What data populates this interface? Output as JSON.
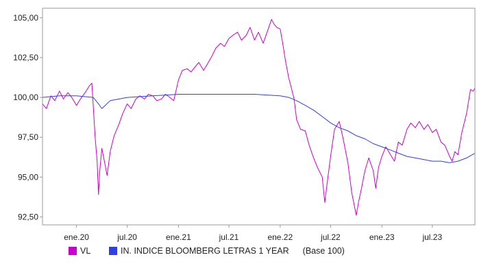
{
  "colors": {
    "series_vl": "#cc00cc",
    "series_index": "#2f3fe0",
    "plot_border": "#9a9a9a",
    "grid": "#e6e6e6"
  },
  "chart_data": {
    "type": "line",
    "title": "",
    "xlabel": "",
    "ylabel": "",
    "x_start": "2019-09",
    "x_end": "2023-12",
    "ylim": [
      92.0,
      105.6
    ],
    "y_ticks": [
      "105,00",
      "102,50",
      "100,00",
      "97,50",
      "95,00",
      "92,50"
    ],
    "y_tick_values": [
      105,
      102.5,
      100,
      97.5,
      95,
      92.5
    ],
    "x_ticks": [
      {
        "label": "ene.20",
        "date": "2020-01"
      },
      {
        "label": "jul.20",
        "date": "2020-07"
      },
      {
        "label": "ene.21",
        "date": "2021-01"
      },
      {
        "label": "jul.21",
        "date": "2021-07"
      },
      {
        "label": "ene.22",
        "date": "2022-01"
      },
      {
        "label": "jul.22",
        "date": "2022-07"
      },
      {
        "label": "ene.23",
        "date": "2023-01"
      },
      {
        "label": "jul.23",
        "date": "2023-07"
      }
    ],
    "grid": false,
    "legend_position": "bottom",
    "series": [
      {
        "name": "VL",
        "color": "#cc00cc",
        "points": [
          [
            "2019-09-01",
            99.6
          ],
          [
            "2019-09-15",
            99.3
          ],
          [
            "2019-10-01",
            100.1
          ],
          [
            "2019-10-15",
            99.8
          ],
          [
            "2019-11-01",
            100.4
          ],
          [
            "2019-11-15",
            99.9
          ],
          [
            "2019-12-01",
            100.3
          ],
          [
            "2019-12-15",
            100.0
          ],
          [
            "2020-01-01",
            99.5
          ],
          [
            "2020-01-15",
            99.9
          ],
          [
            "2020-02-01",
            100.3
          ],
          [
            "2020-02-15",
            100.7
          ],
          [
            "2020-02-25",
            100.9
          ],
          [
            "2020-03-01",
            99.5
          ],
          [
            "2020-03-08",
            97.5
          ],
          [
            "2020-03-15",
            96.0
          ],
          [
            "2020-03-20",
            93.9
          ],
          [
            "2020-03-25",
            95.5
          ],
          [
            "2020-04-01",
            96.8
          ],
          [
            "2020-04-10",
            96.0
          ],
          [
            "2020-04-20",
            95.1
          ],
          [
            "2020-05-01",
            96.6
          ],
          [
            "2020-05-15",
            97.6
          ],
          [
            "2020-06-01",
            98.3
          ],
          [
            "2020-06-15",
            99.0
          ],
          [
            "2020-07-01",
            99.6
          ],
          [
            "2020-07-15",
            99.3
          ],
          [
            "2020-08-01",
            99.9
          ],
          [
            "2020-08-15",
            100.1
          ],
          [
            "2020-09-01",
            99.9
          ],
          [
            "2020-09-15",
            100.2
          ],
          [
            "2020-10-01",
            100.1
          ],
          [
            "2020-10-15",
            99.8
          ],
          [
            "2020-11-01",
            99.9
          ],
          [
            "2020-11-15",
            100.2
          ],
          [
            "2020-12-01",
            100.0
          ],
          [
            "2020-12-15",
            99.8
          ],
          [
            "2021-01-01",
            101.1
          ],
          [
            "2021-01-15",
            101.7
          ],
          [
            "2021-02-01",
            101.8
          ],
          [
            "2021-02-15",
            101.6
          ],
          [
            "2021-03-01",
            101.9
          ],
          [
            "2021-03-15",
            102.2
          ],
          [
            "2021-04-01",
            101.7
          ],
          [
            "2021-04-15",
            102.1
          ],
          [
            "2021-05-01",
            102.6
          ],
          [
            "2021-05-15",
            103.1
          ],
          [
            "2021-06-01",
            103.4
          ],
          [
            "2021-06-15",
            103.2
          ],
          [
            "2021-07-01",
            103.7
          ],
          [
            "2021-07-15",
            103.9
          ],
          [
            "2021-08-01",
            104.1
          ],
          [
            "2021-08-15",
            103.6
          ],
          [
            "2021-09-01",
            103.9
          ],
          [
            "2021-09-15",
            104.4
          ],
          [
            "2021-10-01",
            103.6
          ],
          [
            "2021-10-15",
            104.1
          ],
          [
            "2021-11-01",
            103.4
          ],
          [
            "2021-11-15",
            104.1
          ],
          [
            "2021-12-01",
            104.9
          ],
          [
            "2021-12-10",
            104.6
          ],
          [
            "2021-12-20",
            104.4
          ],
          [
            "2022-01-01",
            104.3
          ],
          [
            "2022-01-10",
            103.4
          ],
          [
            "2022-01-20",
            102.3
          ],
          [
            "2022-02-01",
            101.2
          ],
          [
            "2022-02-10",
            100.6
          ],
          [
            "2022-02-20",
            99.9
          ],
          [
            "2022-03-01",
            98.6
          ],
          [
            "2022-03-15",
            98.0
          ],
          [
            "2022-04-01",
            97.9
          ],
          [
            "2022-04-15",
            97.0
          ],
          [
            "2022-05-01",
            96.2
          ],
          [
            "2022-05-15",
            95.6
          ],
          [
            "2022-06-01",
            95.0
          ],
          [
            "2022-06-10",
            93.4
          ],
          [
            "2022-06-20",
            94.8
          ],
          [
            "2022-07-01",
            96.3
          ],
          [
            "2022-07-15",
            98.0
          ],
          [
            "2022-08-01",
            98.5
          ],
          [
            "2022-08-15",
            97.4
          ],
          [
            "2022-09-01",
            95.9
          ],
          [
            "2022-09-15",
            94.0
          ],
          [
            "2022-10-01",
            92.6
          ],
          [
            "2022-10-10",
            93.5
          ],
          [
            "2022-10-20",
            94.3
          ],
          [
            "2022-11-01",
            95.4
          ],
          [
            "2022-11-15",
            96.2
          ],
          [
            "2022-12-01",
            95.4
          ],
          [
            "2022-12-10",
            94.3
          ],
          [
            "2022-12-20",
            95.6
          ],
          [
            "2023-01-01",
            96.3
          ],
          [
            "2023-01-15",
            96.9
          ],
          [
            "2023-02-01",
            96.4
          ],
          [
            "2023-02-15",
            96.0
          ],
          [
            "2023-03-01",
            97.2
          ],
          [
            "2023-03-15",
            97.0
          ],
          [
            "2023-04-01",
            98.0
          ],
          [
            "2023-04-15",
            98.4
          ],
          [
            "2023-05-01",
            98.1
          ],
          [
            "2023-05-15",
            98.5
          ],
          [
            "2023-06-01",
            98.0
          ],
          [
            "2023-06-15",
            98.3
          ],
          [
            "2023-07-01",
            97.8
          ],
          [
            "2023-07-15",
            98.0
          ],
          [
            "2023-08-01",
            97.2
          ],
          [
            "2023-08-15",
            97.0
          ],
          [
            "2023-09-01",
            96.3
          ],
          [
            "2023-09-10",
            96.0
          ],
          [
            "2023-09-20",
            96.6
          ],
          [
            "2023-10-01",
            96.4
          ],
          [
            "2023-10-15",
            97.8
          ],
          [
            "2023-11-01",
            99.0
          ],
          [
            "2023-11-15",
            100.5
          ],
          [
            "2023-11-25",
            100.4
          ],
          [
            "2023-12-01",
            100.6
          ]
        ]
      },
      {
        "name": "IN. INDICE BLOOMBERG LETRAS 1 YEAR",
        "color": "#2f3fe0",
        "points": [
          [
            "2019-09-01",
            100.0
          ],
          [
            "2019-11-01",
            100.1
          ],
          [
            "2020-01-01",
            100.1
          ],
          [
            "2020-03-01",
            100.0
          ],
          [
            "2020-03-20",
            99.6
          ],
          [
            "2020-04-01",
            99.3
          ],
          [
            "2020-05-01",
            99.8
          ],
          [
            "2020-07-01",
            100.0
          ],
          [
            "2020-10-01",
            100.1
          ],
          [
            "2021-01-01",
            100.2
          ],
          [
            "2021-04-01",
            100.2
          ],
          [
            "2021-07-01",
            100.2
          ],
          [
            "2021-10-01",
            100.2
          ],
          [
            "2022-01-01",
            100.1
          ],
          [
            "2022-02-01",
            100.0
          ],
          [
            "2022-03-01",
            99.8
          ],
          [
            "2022-04-01",
            99.5
          ],
          [
            "2022-05-01",
            99.2
          ],
          [
            "2022-06-01",
            98.8
          ],
          [
            "2022-07-01",
            98.4
          ],
          [
            "2022-08-01",
            98.1
          ],
          [
            "2022-09-01",
            97.9
          ],
          [
            "2022-10-01",
            97.6
          ],
          [
            "2022-11-01",
            97.4
          ],
          [
            "2022-12-01",
            97.1
          ],
          [
            "2023-01-01",
            96.9
          ],
          [
            "2023-02-01",
            96.7
          ],
          [
            "2023-03-01",
            96.5
          ],
          [
            "2023-04-01",
            96.3
          ],
          [
            "2023-05-01",
            96.2
          ],
          [
            "2023-06-01",
            96.1
          ],
          [
            "2023-07-01",
            96.0
          ],
          [
            "2023-08-01",
            96.0
          ],
          [
            "2023-09-01",
            95.9
          ],
          [
            "2023-10-01",
            96.0
          ],
          [
            "2023-11-01",
            96.2
          ],
          [
            "2023-12-01",
            96.5
          ]
        ]
      }
    ],
    "legend": [
      {
        "label": "VL",
        "color": "#cc00cc"
      },
      {
        "label": "IN. INDICE BLOOMBERG LETRAS 1 YEAR",
        "color": "#2f3fe0"
      }
    ],
    "legend_suffix": "(Base 100)"
  }
}
